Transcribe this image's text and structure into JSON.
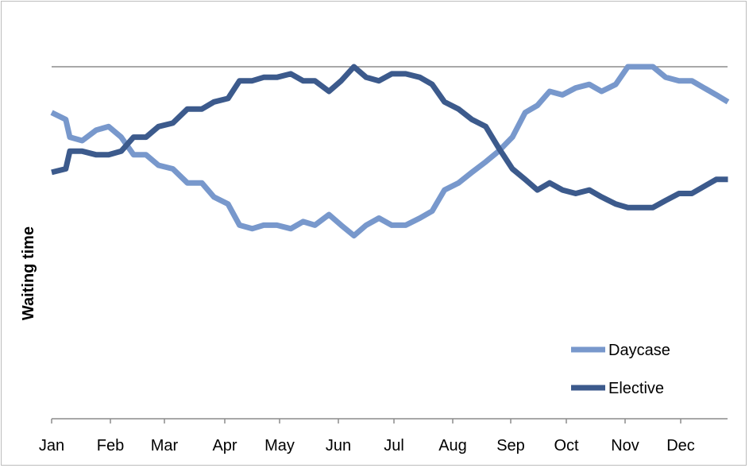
{
  "chart_data": {
    "type": "line",
    "title": "",
    "xlabel": "",
    "ylabel": "Waiting time",
    "ylim": [
      0,
      100
    ],
    "grid": false,
    "legend_position": "bottom-right",
    "x_ticks": [
      "Jan",
      "Feb",
      "Mar",
      "Apr",
      "May",
      "Jun",
      "Jul",
      "Aug",
      "Sep",
      "Oct",
      "Nov",
      "Dec"
    ],
    "reference_line": 100,
    "x_start_month": 1.0,
    "x_end_month": 12.85,
    "series": [
      {
        "name": "Daycase",
        "color": "#7898cc",
        "x": [
          1.0,
          1.24,
          1.31,
          1.52,
          1.76,
          1.97,
          2.2,
          2.43,
          2.66,
          2.89,
          3.14,
          3.38,
          3.62,
          3.82,
          4.06,
          4.27,
          4.5,
          4.71,
          4.95,
          5.19,
          5.4,
          5.6,
          5.84,
          6.05,
          6.28,
          6.5,
          6.73,
          6.96,
          7.2,
          7.44,
          7.65,
          7.86,
          8.1,
          8.33,
          8.57,
          8.79,
          9.03,
          9.26,
          9.48,
          9.7,
          9.93,
          10.16,
          10.39,
          10.6,
          10.84,
          11.05,
          11.28,
          11.5,
          11.73,
          11.97,
          12.2,
          12.42,
          12.64,
          12.85
        ],
        "y": [
          87,
          85,
          80,
          79,
          82,
          83,
          80,
          75,
          75,
          72,
          71,
          67,
          67,
          63,
          61,
          55,
          54,
          55,
          55,
          54,
          56,
          55,
          58,
          55,
          52,
          55,
          57,
          55,
          55,
          57,
          59,
          65,
          67,
          70,
          73,
          76,
          80,
          87,
          89,
          93,
          92,
          94,
          95,
          93,
          95,
          100,
          100,
          100,
          97,
          96,
          96,
          94,
          92,
          90
        ]
      },
      {
        "name": "Elective",
        "color": "#3c5a8c",
        "x": [
          1.0,
          1.24,
          1.31,
          1.52,
          1.76,
          1.97,
          2.2,
          2.43,
          2.66,
          2.89,
          3.14,
          3.38,
          3.62,
          3.82,
          4.06,
          4.27,
          4.5,
          4.71,
          4.95,
          5.19,
          5.4,
          5.6,
          5.84,
          6.05,
          6.28,
          6.5,
          6.73,
          6.96,
          7.2,
          7.44,
          7.65,
          7.86,
          8.1,
          8.33,
          8.57,
          8.79,
          9.03,
          9.26,
          9.48,
          9.7,
          9.93,
          10.16,
          10.39,
          10.6,
          10.84,
          11.05,
          11.28,
          11.5,
          11.73,
          11.97,
          12.2,
          12.42,
          12.64,
          12.85
        ],
        "y": [
          70,
          71,
          76,
          76,
          75,
          75,
          76,
          80,
          80,
          83,
          84,
          88,
          88,
          90,
          91,
          96,
          96,
          97,
          97,
          98,
          96,
          96,
          93,
          96,
          100,
          97,
          96,
          98,
          98,
          97,
          95,
          90,
          88,
          85,
          83,
          77,
          71,
          68,
          65,
          67,
          65,
          64,
          65,
          63,
          61,
          60,
          60,
          60,
          62,
          64,
          64,
          66,
          68,
          68
        ]
      }
    ]
  }
}
